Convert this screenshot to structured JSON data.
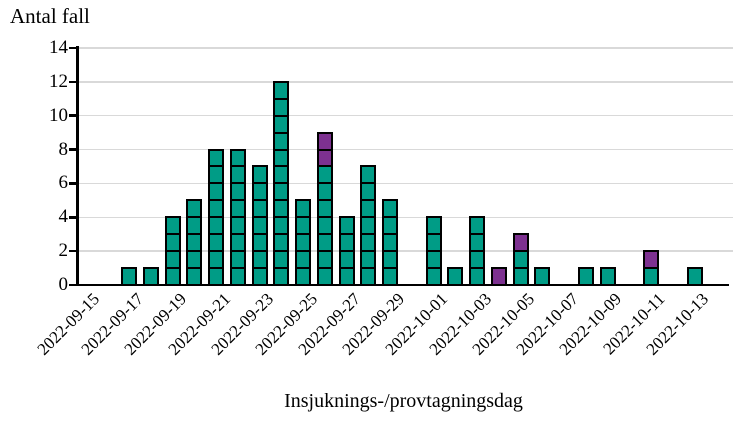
{
  "chart_data": {
    "type": "bar",
    "stacked": true,
    "style": "unit-square epicurve (each case drawn as one outlined square)",
    "title": "",
    "ylabel": "Antal fall",
    "xlabel": "Insjuknings-/provtagningsdag",
    "ylim": [
      0,
      14
    ],
    "yticks": [
      0,
      2,
      4,
      6,
      8,
      10,
      12,
      14
    ],
    "grid": "horizontal light-gray lines at every y tick, behind bars",
    "legend": "none",
    "colors": {
      "case_green": "#009C86",
      "case_purple": "#7D3190",
      "cell_border": "#000000",
      "gridline": "#D9D9D9",
      "axis": "#000000",
      "background": "#FFFFFF"
    },
    "dates": [
      "2022-09-15",
      "2022-09-16",
      "2022-09-17",
      "2022-09-18",
      "2022-09-19",
      "2022-09-20",
      "2022-09-21",
      "2022-09-22",
      "2022-09-23",
      "2022-09-24",
      "2022-09-25",
      "2022-09-26",
      "2022-09-27",
      "2022-09-28",
      "2022-09-29",
      "2022-09-30",
      "2022-10-01",
      "2022-10-02",
      "2022-10-03",
      "2022-10-04",
      "2022-10-05",
      "2022-10-06",
      "2022-10-07",
      "2022-10-08",
      "2022-10-09",
      "2022-10-10",
      "2022-10-11",
      "2022-10-12",
      "2022-10-13"
    ],
    "xtick_labels": [
      "2022-09-15",
      "2022-09-17",
      "2022-09-19",
      "2022-09-21",
      "2022-09-23",
      "2022-09-25",
      "2022-09-27",
      "2022-09-29",
      "2022-10-01",
      "2022-10-03",
      "2022-10-05",
      "2022-10-07",
      "2022-10-09",
      "2022-10-11",
      "2022-10-13"
    ],
    "series": [
      {
        "name": "green-cases",
        "color_key": "case_green",
        "values": [
          0,
          0,
          1,
          1,
          4,
          5,
          8,
          8,
          7,
          12,
          5,
          7,
          4,
          7,
          5,
          0,
          4,
          1,
          4,
          0,
          2,
          1,
          0,
          1,
          1,
          0,
          1,
          0,
          1
        ]
      },
      {
        "name": "purple-cases",
        "color_key": "case_purple",
        "values": [
          0,
          0,
          0,
          0,
          0,
          0,
          0,
          0,
          0,
          0,
          0,
          2,
          0,
          0,
          0,
          0,
          0,
          0,
          0,
          1,
          1,
          0,
          0,
          0,
          0,
          0,
          1,
          0,
          0
        ]
      }
    ],
    "totals_per_day": [
      0,
      0,
      1,
      1,
      4,
      5,
      8,
      8,
      7,
      12,
      5,
      9,
      4,
      7,
      5,
      0,
      4,
      1,
      4,
      1,
      3,
      1,
      0,
      1,
      1,
      0,
      2,
      0,
      1
    ],
    "total_cases": 95
  }
}
